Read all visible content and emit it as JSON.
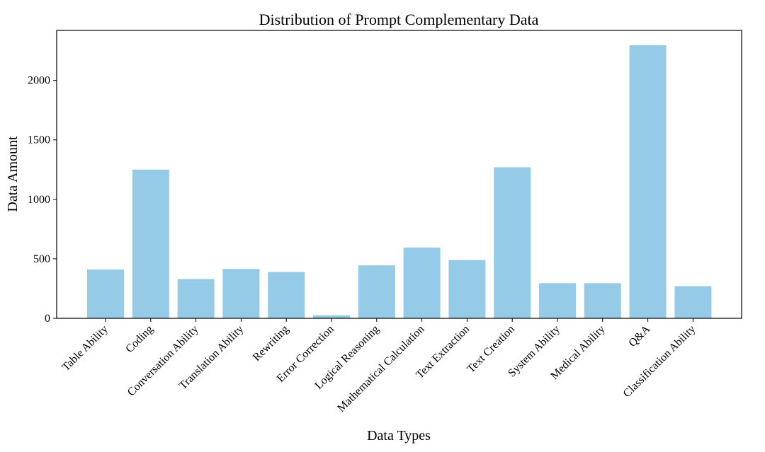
{
  "chart_data": {
    "type": "bar",
    "title": "Distribution of Prompt Complementary Data",
    "xlabel": "Data Types",
    "ylabel": "Data Amount",
    "categories": [
      "Table Ability",
      "Coding",
      "Conversation Ability",
      "Translation Ability",
      "Rewriting",
      "Error Correction",
      "Logical Reasoning",
      "Mathematical Calculation",
      "Text Extraction",
      "Text Creation",
      "System Ability",
      "Medical Ability",
      "Q&A",
      "Classification Ability"
    ],
    "values": [
      410,
      1250,
      330,
      415,
      390,
      25,
      445,
      595,
      490,
      1270,
      295,
      295,
      2295,
      270
    ],
    "ylim": [
      0,
      2420
    ],
    "yticks": [
      0,
      500,
      1000,
      1500,
      2000
    ],
    "bar_color": "#95cbe6",
    "grid": false,
    "legend": "none"
  }
}
